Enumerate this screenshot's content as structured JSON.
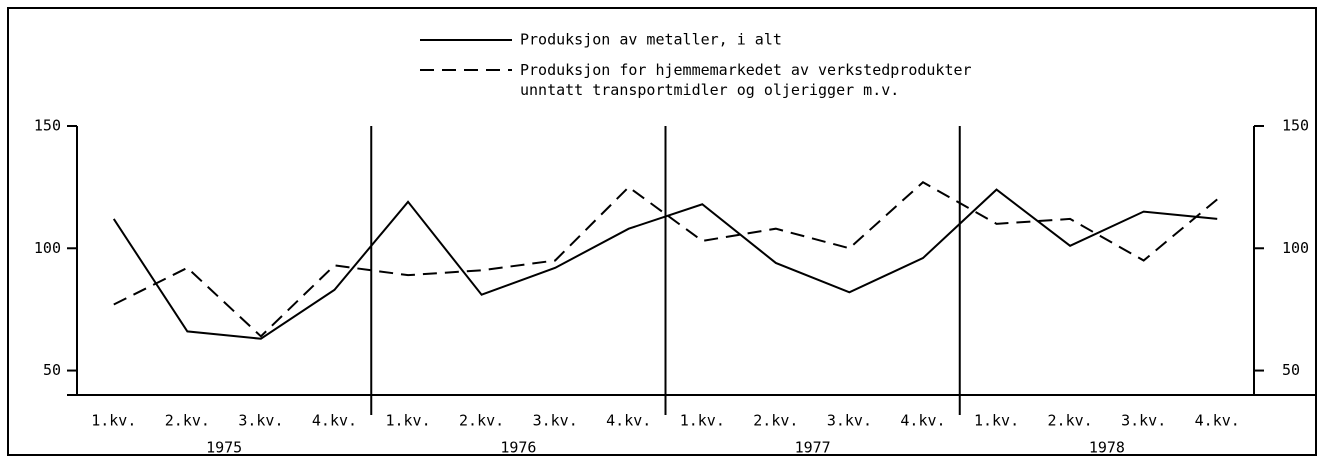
{
  "chart_data": {
    "type": "line",
    "categories": [
      "1.kv.",
      "2.kv.",
      "3.kv.",
      "4.kv.",
      "1.kv.",
      "2.kv.",
      "3.kv.",
      "4.kv.",
      "1.kv.",
      "2.kv.",
      "3.kv.",
      "4.kv.",
      "1.kv.",
      "2.kv.",
      "3.kv.",
      "4.kv."
    ],
    "years": [
      "1975",
      "1976",
      "1977",
      "1978"
    ],
    "series": [
      {
        "name": "Produksjon av metaller, i alt",
        "color": "#000000",
        "dash": "solid",
        "values": [
          112,
          66,
          63,
          83,
          119,
          81,
          92,
          108,
          118,
          94,
          82,
          96,
          124,
          101,
          115,
          112
        ]
      },
      {
        "name": "Produksjon for hjemmemarkedet av verkstedprodukter unntatt transportmidler og oljerigger m.v.",
        "color": "#000000",
        "dash": "dashed",
        "values": [
          77,
          92,
          64,
          93,
          89,
          91,
          95,
          125,
          103,
          108,
          100,
          127,
          110,
          112,
          95,
          120
        ]
      }
    ],
    "ylim": [
      40,
      150
    ],
    "yticks": [
      50,
      100,
      150
    ],
    "y2ticks": [
      50,
      100,
      150
    ]
  }
}
